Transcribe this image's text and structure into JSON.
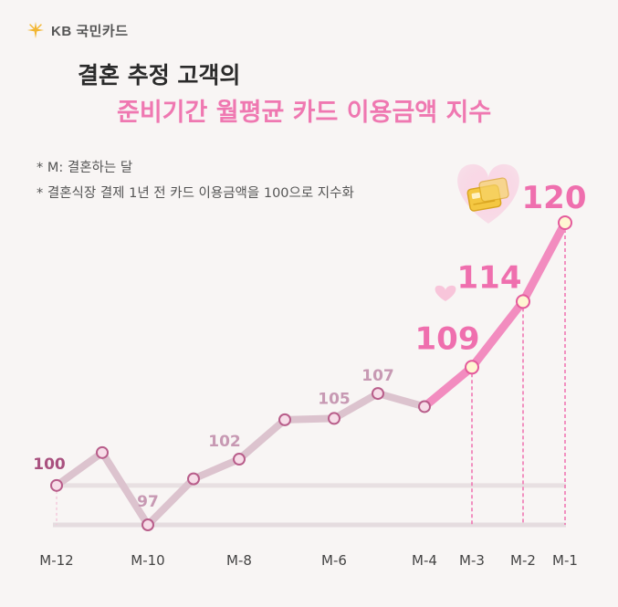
{
  "brand": {
    "logo_text": "KB 국민카드",
    "logo_icon": "kb-star-icon"
  },
  "header": {
    "title_line1": "결혼 추정 고객의",
    "title_line2": "준비기간 월평균 카드 이용금액 지수"
  },
  "notes": {
    "note1": "* M: 결혼하는 달",
    "note2": "* 결혼식장 결제 1년 전 카드 이용금액을 100으로 지수화"
  },
  "colors": {
    "accent": "#ef78b1",
    "line_light": "#dcc3ce",
    "line_bold": "#f28cbf",
    "marker_fill_light": "#f7dde8",
    "marker_fill_bold": "#fff6d2"
  },
  "decorations": {
    "heart_icon": "heart-icon",
    "card_icon": "credit-card-icon"
  },
  "chart_data": {
    "type": "line",
    "title": "준비기간 월평균 카드 이용금액 지수",
    "x": [
      "M-12",
      "M-11",
      "M-10",
      "M-9",
      "M-8",
      "M-7",
      "M-6",
      "M-5",
      "M-4",
      "M-3",
      "M-2",
      "M-1"
    ],
    "x_tick_labels": [
      "M-12",
      "M-10",
      "M-8",
      "M-6",
      "M-4",
      "M-3",
      "M-2",
      "M-1"
    ],
    "series": [
      {
        "values": [
          100,
          102.5,
          97,
          100.5,
          102,
          105,
          105.1,
          107,
          106,
          109,
          114,
          120
        ]
      }
    ],
    "data_labels": {
      "M-12": "100",
      "M-10": "97",
      "M-8": "102",
      "M-6": "105",
      "M-5": "107",
      "M-3": "109",
      "M-2": "114",
      "M-1": "120"
    },
    "highlight_from": "M-4",
    "reference_line": 100,
    "ylim": [
      97,
      120
    ],
    "grid": false
  }
}
